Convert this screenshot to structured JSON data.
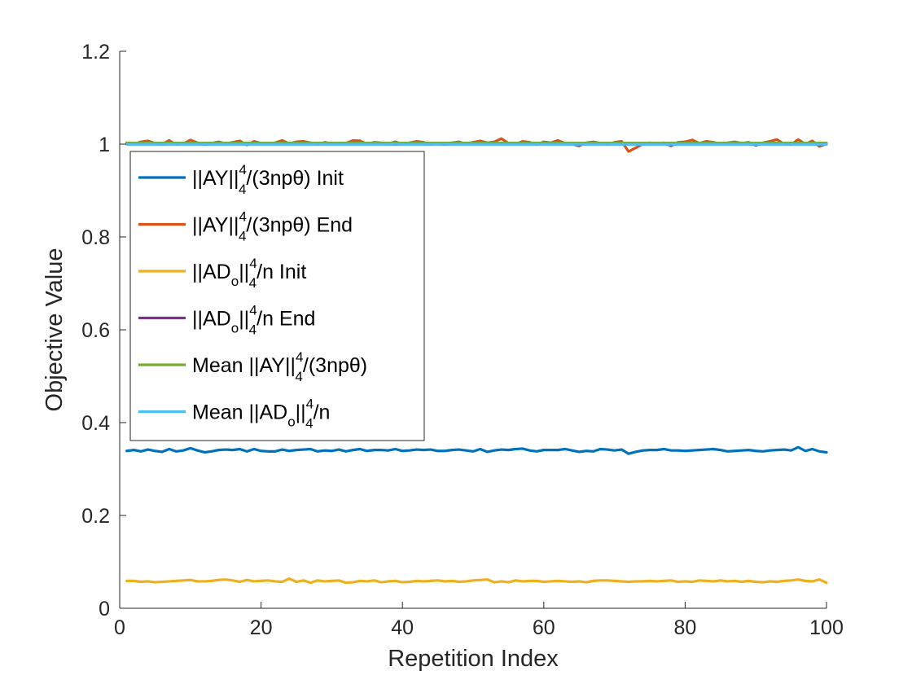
{
  "chart_data": {
    "type": "line",
    "title": "",
    "xlabel": "Repetition Index",
    "ylabel": "Objective Value",
    "xlim": [
      0,
      100
    ],
    "ylim": [
      0,
      1.2
    ],
    "xticks": [
      0,
      20,
      40,
      60,
      80,
      100
    ],
    "xtick_labels": [
      "0",
      "20",
      "40",
      "60",
      "80",
      "100"
    ],
    "yticks": [
      0,
      0.2,
      0.4,
      0.6,
      0.8,
      1,
      1.2
    ],
    "ytick_labels": [
      "0",
      "0.2",
      "0.4",
      "0.6",
      "0.8",
      "1",
      "1.2"
    ],
    "grid": false,
    "legend_position": "upper-left",
    "x": [
      1,
      2,
      3,
      4,
      5,
      6,
      7,
      8,
      9,
      10,
      11,
      12,
      13,
      14,
      15,
      16,
      17,
      18,
      19,
      20,
      21,
      22,
      23,
      24,
      25,
      26,
      27,
      28,
      29,
      30,
      31,
      32,
      33,
      34,
      35,
      36,
      37,
      38,
      39,
      40,
      41,
      42,
      43,
      44,
      45,
      46,
      47,
      48,
      49,
      50,
      51,
      52,
      53,
      54,
      55,
      56,
      57,
      58,
      59,
      60,
      61,
      62,
      63,
      64,
      65,
      66,
      67,
      68,
      69,
      70,
      71,
      72,
      73,
      74,
      75,
      76,
      77,
      78,
      79,
      80,
      81,
      82,
      83,
      84,
      85,
      86,
      87,
      88,
      89,
      90,
      91,
      92,
      93,
      94,
      95,
      96,
      97,
      98,
      99,
      100
    ],
    "series": [
      {
        "name": "||AY||_4^4/(3npθ) Init",
        "legend_parts": {
          "pre": "||AY||",
          "sup": "4",
          "sub": "4",
          "post": "/(3npθ) Init"
        },
        "color": "#0072BD",
        "values": [
          0.339,
          0.341,
          0.338,
          0.342,
          0.339,
          0.337,
          0.343,
          0.338,
          0.34,
          0.345,
          0.34,
          0.336,
          0.338,
          0.341,
          0.342,
          0.341,
          0.343,
          0.338,
          0.343,
          0.339,
          0.338,
          0.338,
          0.342,
          0.339,
          0.341,
          0.342,
          0.343,
          0.338,
          0.34,
          0.339,
          0.342,
          0.338,
          0.341,
          0.343,
          0.339,
          0.341,
          0.341,
          0.34,
          0.343,
          0.339,
          0.34,
          0.342,
          0.341,
          0.342,
          0.339,
          0.339,
          0.341,
          0.342,
          0.34,
          0.338,
          0.343,
          0.337,
          0.34,
          0.342,
          0.341,
          0.343,
          0.344,
          0.34,
          0.338,
          0.341,
          0.341,
          0.341,
          0.343,
          0.34,
          0.337,
          0.339,
          0.338,
          0.343,
          0.342,
          0.34,
          0.342,
          0.333,
          0.337,
          0.34,
          0.341,
          0.341,
          0.343,
          0.34,
          0.34,
          0.339,
          0.34,
          0.341,
          0.342,
          0.343,
          0.341,
          0.338,
          0.339,
          0.34,
          0.341,
          0.339,
          0.338,
          0.34,
          0.341,
          0.342,
          0.34,
          0.347,
          0.339,
          0.343,
          0.338,
          0.336
        ]
      },
      {
        "name": "||AY||_4^4/(3npθ) End",
        "legend_parts": {
          "pre": "||AY||",
          "sup": "4",
          "sub": "4",
          "post": "/(3npθ) End"
        },
        "color": "#D95319",
        "values": [
          1.003,
          1.0,
          1.005,
          1.007,
          1.002,
          1.0,
          1.008,
          0.999,
          1.001,
          1.009,
          1.003,
          0.999,
          1.002,
          1.005,
          1.001,
          1.004,
          1.007,
          0.998,
          1.006,
          1.002,
          1.0,
          1.003,
          1.008,
          1.001,
          1.005,
          1.006,
          1.003,
          0.999,
          1.004,
          1.001,
          1.0,
          1.002,
          1.008,
          1.007,
          1.0,
          1.004,
          1.003,
          1.001,
          1.005,
          1.0,
          1.003,
          1.006,
          1.004,
          0.999,
          1.002,
          1.001,
          1.003,
          1.005,
          1.0,
          1.004,
          1.007,
          1.003,
          1.005,
          1.012,
          1.002,
          1.0,
          1.006,
          1.004,
          0.999,
          1.005,
          1.003,
          1.008,
          1.002,
          1.0,
          0.996,
          1.003,
          1.005,
          1.002,
          0.999,
          1.004,
          1.006,
          0.984,
          0.992,
          1.0,
          1.003,
          1.001,
          1.003,
          0.996,
          1.004,
          1.005,
          1.009,
          1.002,
          1.006,
          1.004,
          1.0,
          1.003,
          1.005,
          1.002,
          1.004,
          0.997,
          1.003,
          1.006,
          1.01,
          1.0,
          0.999,
          1.01,
          1.0,
          1.007,
          0.995,
          1.001
        ]
      },
      {
        "name": "||AD_o||_4^4/n Init",
        "legend_parts": {
          "pre": "||AD",
          "pre_sub": "o",
          "mid": "||",
          "sup": "4",
          "sub": "4",
          "post": "/n Init"
        },
        "color": "#EDB120",
        "values": [
          0.059,
          0.059,
          0.057,
          0.058,
          0.056,
          0.057,
          0.058,
          0.059,
          0.06,
          0.061,
          0.058,
          0.058,
          0.059,
          0.061,
          0.062,
          0.06,
          0.057,
          0.061,
          0.058,
          0.059,
          0.06,
          0.058,
          0.057,
          0.064,
          0.057,
          0.06,
          0.055,
          0.06,
          0.058,
          0.059,
          0.06,
          0.055,
          0.056,
          0.059,
          0.058,
          0.06,
          0.056,
          0.058,
          0.059,
          0.056,
          0.057,
          0.059,
          0.058,
          0.059,
          0.06,
          0.058,
          0.059,
          0.057,
          0.058,
          0.06,
          0.061,
          0.062,
          0.056,
          0.058,
          0.056,
          0.06,
          0.058,
          0.059,
          0.059,
          0.057,
          0.058,
          0.059,
          0.058,
          0.057,
          0.058,
          0.056,
          0.059,
          0.06,
          0.06,
          0.059,
          0.058,
          0.057,
          0.058,
          0.058,
          0.059,
          0.058,
          0.059,
          0.06,
          0.057,
          0.058,
          0.057,
          0.06,
          0.059,
          0.058,
          0.06,
          0.058,
          0.059,
          0.057,
          0.059,
          0.057,
          0.056,
          0.058,
          0.057,
          0.059,
          0.06,
          0.062,
          0.059,
          0.058,
          0.062,
          0.055
        ]
      },
      {
        "name": "||AD_o||_4^4/n End",
        "legend_parts": {
          "pre": "||AD",
          "pre_sub": "o",
          "mid": "||",
          "sup": "4",
          "sub": "4",
          "post": "/n End"
        },
        "color": "#7E2F8E",
        "values": [
          1.0,
          1.0,
          1.0,
          1.0,
          1.0,
          0.999,
          1.0,
          1.0,
          1.0,
          1.0,
          1.0,
          0.999,
          1.0,
          1.0,
          1.0,
          1.0,
          1.0,
          1.0,
          1.0,
          1.0,
          1.0,
          1.0,
          1.0,
          1.0,
          1.0,
          1.0,
          1.0,
          1.0,
          1.0,
          1.0,
          1.0,
          1.0,
          1.0,
          1.0,
          1.0,
          1.0,
          1.0,
          1.0,
          0.999,
          1.0,
          1.0,
          1.0,
          1.0,
          1.0,
          1.0,
          0.999,
          1.0,
          1.0,
          1.0,
          1.0,
          1.0,
          1.0,
          1.0,
          1.0,
          1.0,
          1.0,
          1.0,
          1.0,
          1.0,
          1.0,
          1.0,
          1.0,
          1.0,
          1.0,
          0.999,
          1.0,
          1.0,
          1.0,
          1.0,
          1.0,
          1.0,
          1.0,
          1.0,
          1.0,
          1.0,
          1.0,
          1.0,
          0.999,
          1.0,
          1.0,
          1.0,
          1.0,
          1.0,
          1.0,
          1.0,
          1.0,
          1.0,
          1.0,
          1.0,
          0.999,
          1.0,
          1.0,
          1.0,
          1.0,
          1.0,
          1.0,
          1.0,
          1.0,
          1.0,
          1.0
        ]
      },
      {
        "name": "Mean ||AY||_4^4/(3npθ)",
        "legend_parts": {
          "pre": "Mean ||AY||",
          "sup": "4",
          "sub": "4",
          "post": "/(3npθ)"
        },
        "color": "#77AC30",
        "values": [
          1.0025,
          1.0025,
          1.0025,
          1.0025,
          1.0025,
          1.0025,
          1.0025,
          1.0025,
          1.0025,
          1.0025,
          1.0025,
          1.0025,
          1.0025,
          1.0025,
          1.0025,
          1.0025,
          1.0025,
          1.0025,
          1.0025,
          1.0025,
          1.0025,
          1.0025,
          1.0025,
          1.0025,
          1.0025,
          1.0025,
          1.0025,
          1.0025,
          1.0025,
          1.0025,
          1.0025,
          1.0025,
          1.0025,
          1.0025,
          1.0025,
          1.0025,
          1.0025,
          1.0025,
          1.0025,
          1.0025,
          1.0025,
          1.0025,
          1.0025,
          1.0025,
          1.0025,
          1.0025,
          1.0025,
          1.0025,
          1.0025,
          1.0025,
          1.0025,
          1.0025,
          1.0025,
          1.0025,
          1.0025,
          1.0025,
          1.0025,
          1.0025,
          1.0025,
          1.0025,
          1.0025,
          1.0025,
          1.0025,
          1.0025,
          1.0025,
          1.0025,
          1.0025,
          1.0025,
          1.0025,
          1.0025,
          1.0025,
          1.0025,
          1.0025,
          1.0025,
          1.0025,
          1.0025,
          1.0025,
          1.0025,
          1.0025,
          1.0025,
          1.0025,
          1.0025,
          1.0025,
          1.0025,
          1.0025,
          1.0025,
          1.0025,
          1.0025,
          1.0025,
          1.0025,
          1.0025,
          1.0025,
          1.0025,
          1.0025,
          1.0025,
          1.0025,
          1.0025,
          1.0025,
          1.0025,
          1.0025
        ]
      },
      {
        "name": "Mean ||AD_o||_4^4/n",
        "legend_parts": {
          "pre": "Mean ||AD",
          "pre_sub": "o",
          "mid": "||",
          "sup": "4",
          "sub": "4",
          "post": "/n"
        },
        "color": "#4DBEEE",
        "values": [
          0.9995,
          0.9995,
          0.9995,
          0.9995,
          0.9995,
          0.9995,
          0.9995,
          0.9995,
          0.9995,
          0.9995,
          0.9995,
          0.9995,
          0.9995,
          0.9995,
          0.9995,
          0.9995,
          0.9995,
          0.9995,
          0.9995,
          0.9995,
          0.9995,
          0.9995,
          0.9995,
          0.9995,
          0.9995,
          0.9995,
          0.9995,
          0.9995,
          0.9995,
          0.9995,
          0.9995,
          0.9995,
          0.9995,
          0.9995,
          0.9995,
          0.9995,
          0.9995,
          0.9995,
          0.9995,
          0.9995,
          0.9995,
          0.9995,
          0.9995,
          0.9995,
          0.9995,
          0.9995,
          0.9995,
          0.9995,
          0.9995,
          0.9995,
          0.9995,
          0.9995,
          0.9995,
          0.9995,
          0.9995,
          0.9995,
          0.9995,
          0.9995,
          0.9995,
          0.9995,
          0.9995,
          0.9995,
          0.9995,
          0.9995,
          0.9995,
          0.9995,
          0.9995,
          0.9995,
          0.9995,
          0.9995,
          0.9995,
          0.9995,
          0.9995,
          0.9995,
          0.9995,
          0.9995,
          0.9995,
          0.9995,
          0.9995,
          0.9995,
          0.9995,
          0.9995,
          0.9995,
          0.9995,
          0.9995,
          0.9995,
          0.9995,
          0.9995,
          0.9995,
          0.9995,
          0.9995,
          0.9995,
          0.9995,
          0.9995,
          0.9995,
          0.9995,
          0.9995,
          0.9995,
          0.9995,
          0.9995
        ]
      }
    ]
  }
}
